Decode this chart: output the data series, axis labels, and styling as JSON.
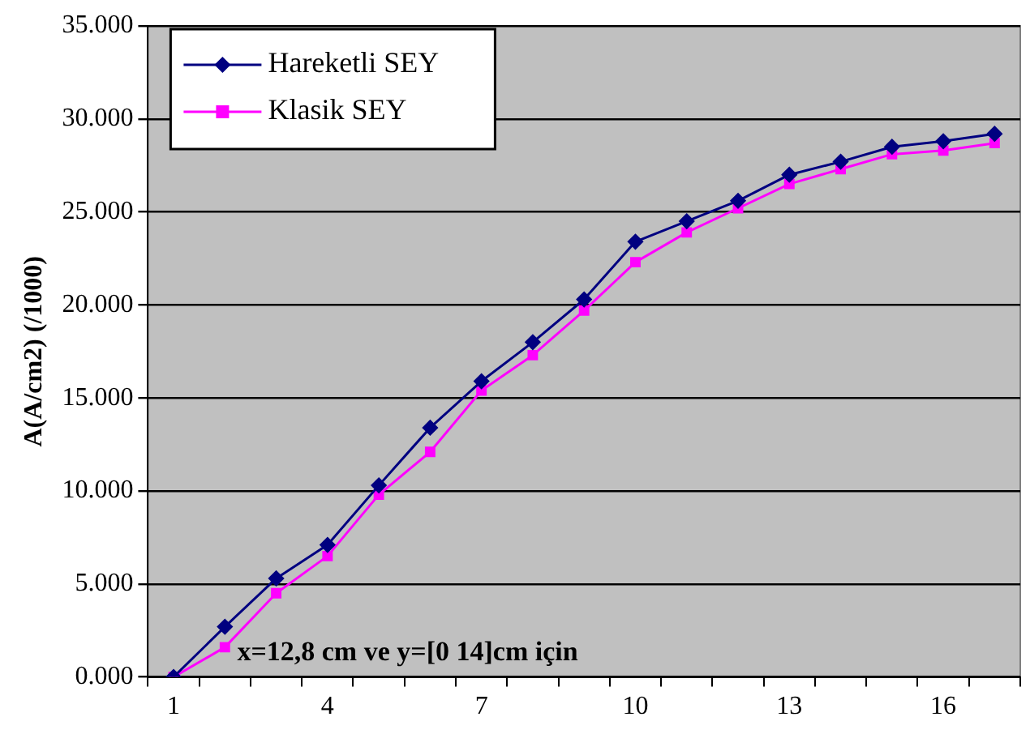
{
  "chart_data": {
    "type": "line",
    "ylabel": "A(A/cm2) (/1000)",
    "categories": [
      "1",
      null,
      null,
      "4",
      null,
      null,
      "7",
      null,
      null,
      "10",
      null,
      null,
      "13",
      null,
      null,
      "16",
      null
    ],
    "series": [
      {
        "name": "Hareketli SEY",
        "color": "#000080",
        "marker": "diamond",
        "values": [
          0,
          2.7,
          5.3,
          7.1,
          10.3,
          13.4,
          15.9,
          18.0,
          20.3,
          23.4,
          24.5,
          25.6,
          27.0,
          27.7,
          28.5,
          28.8,
          29.2
        ]
      },
      {
        "name": "Klasik SEY",
        "color": "#ff00ff",
        "marker": "square",
        "values": [
          0,
          1.6,
          4.5,
          6.5,
          9.8,
          12.1,
          15.4,
          17.3,
          19.7,
          22.3,
          23.9,
          25.2,
          26.5,
          27.3,
          28.1,
          28.3,
          28.7
        ]
      }
    ],
    "ylim": [
      0,
      35
    ],
    "yticks": [
      {
        "value": 0,
        "label": "0.000"
      },
      {
        "value": 5,
        "label": "5.000"
      },
      {
        "value": 10,
        "label": "10.000"
      },
      {
        "value": 15,
        "label": "15.000"
      },
      {
        "value": 20,
        "label": "20.000"
      },
      {
        "value": 25,
        "label": "25.000"
      },
      {
        "value": 30,
        "label": "30.000"
      },
      {
        "value": 35,
        "label": "35.000"
      }
    ],
    "grid": "y",
    "legend": "top left",
    "annotations": [
      "x=12,8 cm ve y=[0 14]cm için"
    ]
  }
}
